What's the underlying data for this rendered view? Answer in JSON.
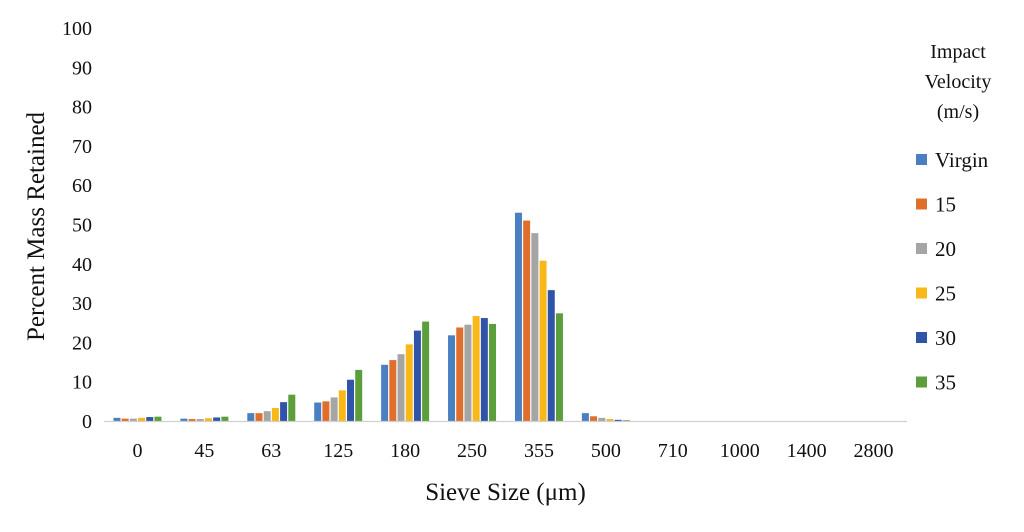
{
  "chart_data": {
    "type": "bar",
    "xlabel": "Sieve Size (μm)",
    "ylabel": "Percent Mass Retained",
    "ylim": [
      0,
      100
    ],
    "yticks": [
      "0",
      "10",
      "20",
      "30",
      "40",
      "50",
      "60",
      "70",
      "80",
      "90",
      "100"
    ],
    "categories": [
      "0",
      "45",
      "63",
      "125",
      "180",
      "250",
      "355",
      "500",
      "710",
      "1000",
      "1400",
      "2800"
    ],
    "legend": {
      "title_lines": [
        "Impact",
        "Velocity",
        "(m/s)"
      ],
      "placement": "right"
    },
    "grid": false,
    "series": [
      {
        "name": "Virgin",
        "color": "#4a7fc1",
        "values": [
          0.8,
          0.6,
          2.0,
          4.7,
          14.3,
          21.8,
          53.0,
          2.0,
          0,
          0,
          0,
          0
        ]
      },
      {
        "name": "15",
        "color": "#e06f2c",
        "values": [
          0.6,
          0.5,
          2.0,
          5.0,
          15.5,
          23.8,
          51.0,
          1.2,
          0,
          0,
          0,
          0
        ]
      },
      {
        "name": "20",
        "color": "#a5a5a5",
        "values": [
          0.6,
          0.5,
          2.5,
          6.0,
          17.0,
          24.5,
          47.8,
          0.8,
          0,
          0,
          0,
          0
        ]
      },
      {
        "name": "25",
        "color": "#f7b818",
        "values": [
          0.8,
          0.7,
          3.3,
          7.8,
          19.5,
          26.7,
          40.8,
          0.5,
          0,
          0,
          0,
          0
        ]
      },
      {
        "name": "30",
        "color": "#2f54a8",
        "values": [
          1.0,
          0.9,
          4.8,
          10.5,
          23.0,
          26.2,
          33.3,
          0.3,
          0,
          0,
          0,
          0
        ]
      },
      {
        "name": "35",
        "color": "#5c9e3c",
        "values": [
          1.1,
          1.1,
          6.7,
          13.0,
          25.3,
          24.7,
          27.4,
          0.2,
          0,
          0,
          0,
          0
        ]
      }
    ]
  }
}
